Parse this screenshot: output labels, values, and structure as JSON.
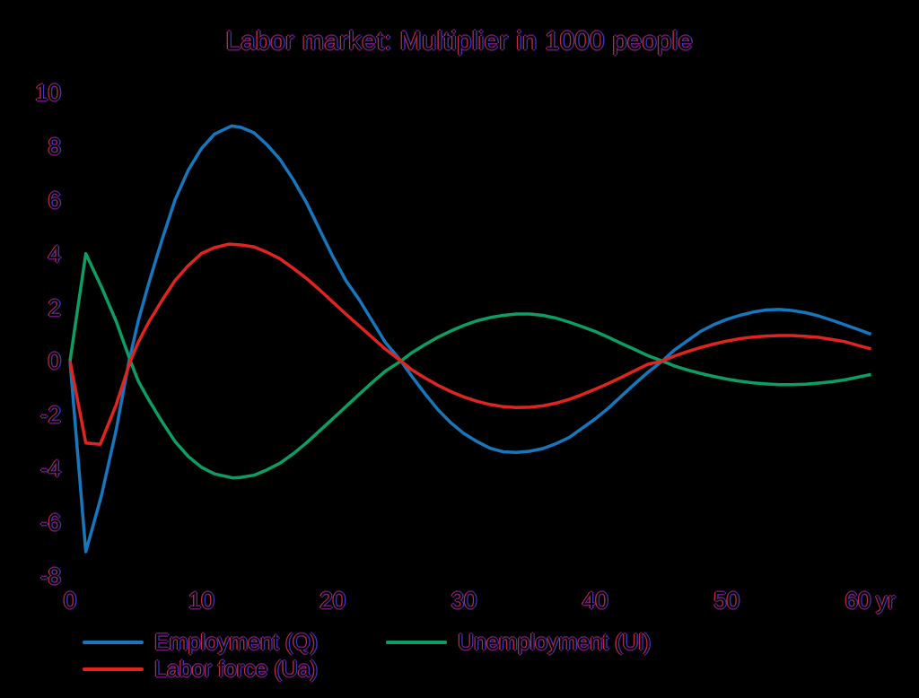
{
  "background": "#000000",
  "text_style": {
    "fill": "#000000",
    "fringe_left": "#c02848",
    "fringe_right": "#4534c0",
    "fringe_vertical": "#701478"
  },
  "chart_data": {
    "type": "line",
    "title": "Labor market: Multiplier in 1000 people",
    "xlabel": "yr",
    "ylabel": "",
    "x_ticks": [
      0,
      10,
      20,
      30,
      40,
      50,
      60
    ],
    "y_ticks": [
      10,
      8,
      6,
      4,
      2,
      0,
      -2,
      -4,
      -6,
      -8
    ],
    "xlim": [
      0,
      62
    ],
    "ylim": [
      -8,
      10
    ],
    "grid": false,
    "legend_position": "bottom",
    "series": [
      {
        "name": "Employment (Q)",
        "color": "#1777bd",
        "points": [
          [
            0,
            0
          ],
          [
            1.2,
            -7.1
          ],
          [
            2.4,
            -5.0
          ],
          [
            3.5,
            -2.6
          ],
          [
            4.5,
            0
          ],
          [
            5.2,
            1.5
          ],
          [
            6,
            2.9
          ],
          [
            7,
            4.5
          ],
          [
            8,
            6.0
          ],
          [
            9,
            7.1
          ],
          [
            10,
            7.9
          ],
          [
            11,
            8.45
          ],
          [
            12.3,
            8.75
          ],
          [
            13,
            8.7
          ],
          [
            14,
            8.5
          ],
          [
            15,
            8.05
          ],
          [
            16,
            7.5
          ],
          [
            17,
            6.75
          ],
          [
            18,
            5.9
          ],
          [
            19,
            4.9
          ],
          [
            20,
            3.9
          ],
          [
            21,
            3.0
          ],
          [
            22,
            2.3
          ],
          [
            23,
            1.5
          ],
          [
            24,
            0.7
          ],
          [
            25.2,
            0
          ],
          [
            26,
            -0.55
          ],
          [
            27,
            -1.2
          ],
          [
            28,
            -1.8
          ],
          [
            29,
            -2.3
          ],
          [
            30,
            -2.7
          ],
          [
            31,
            -3.0
          ],
          [
            32,
            -3.25
          ],
          [
            33,
            -3.38
          ],
          [
            34,
            -3.4
          ],
          [
            35,
            -3.36
          ],
          [
            36,
            -3.26
          ],
          [
            37,
            -3.08
          ],
          [
            38,
            -2.85
          ],
          [
            39,
            -2.5
          ],
          [
            40,
            -2.15
          ],
          [
            41,
            -1.75
          ],
          [
            42,
            -1.3
          ],
          [
            43,
            -0.85
          ],
          [
            44,
            -0.42
          ],
          [
            45.1,
            0
          ],
          [
            46,
            0.4
          ],
          [
            47,
            0.75
          ],
          [
            48,
            1.1
          ],
          [
            49,
            1.35
          ],
          [
            50,
            1.55
          ],
          [
            51,
            1.7
          ],
          [
            52,
            1.82
          ],
          [
            53,
            1.9
          ],
          [
            54,
            1.92
          ],
          [
            55,
            1.88
          ],
          [
            56,
            1.8
          ],
          [
            57,
            1.68
          ],
          [
            58,
            1.52
          ],
          [
            59,
            1.35
          ],
          [
            60,
            1.18
          ],
          [
            61,
            1.0
          ]
        ]
      },
      {
        "name": "Unemployment (Ul)",
        "color": "#0d9e63",
        "points": [
          [
            0,
            0
          ],
          [
            1.2,
            4.0
          ],
          [
            2.4,
            2.75
          ],
          [
            3.5,
            1.5
          ],
          [
            4.6,
            0
          ],
          [
            5.2,
            -0.75
          ],
          [
            6,
            -1.45
          ],
          [
            7,
            -2.25
          ],
          [
            8,
            -3.0
          ],
          [
            9,
            -3.55
          ],
          [
            10,
            -3.95
          ],
          [
            11,
            -4.2
          ],
          [
            12.4,
            -4.35
          ],
          [
            13,
            -4.33
          ],
          [
            14,
            -4.25
          ],
          [
            15,
            -4.05
          ],
          [
            16,
            -3.8
          ],
          [
            17,
            -3.45
          ],
          [
            18,
            -3.05
          ],
          [
            19,
            -2.6
          ],
          [
            20,
            -2.15
          ],
          [
            21,
            -1.7
          ],
          [
            22,
            -1.25
          ],
          [
            23,
            -0.8
          ],
          [
            24,
            -0.38
          ],
          [
            25.2,
            0
          ],
          [
            26,
            0.3
          ],
          [
            27,
            0.6
          ],
          [
            28,
            0.88
          ],
          [
            29,
            1.12
          ],
          [
            30,
            1.33
          ],
          [
            31,
            1.5
          ],
          [
            32,
            1.62
          ],
          [
            33,
            1.7
          ],
          [
            34,
            1.75
          ],
          [
            35,
            1.75
          ],
          [
            36,
            1.7
          ],
          [
            37,
            1.6
          ],
          [
            38,
            1.45
          ],
          [
            39,
            1.28
          ],
          [
            40,
            1.1
          ],
          [
            41,
            0.88
          ],
          [
            42,
            0.65
          ],
          [
            43,
            0.43
          ],
          [
            44,
            0.2
          ],
          [
            45.1,
            0
          ],
          [
            46,
            -0.18
          ],
          [
            47,
            -0.33
          ],
          [
            48,
            -0.46
          ],
          [
            49,
            -0.57
          ],
          [
            50,
            -0.67
          ],
          [
            51,
            -0.75
          ],
          [
            52,
            -0.81
          ],
          [
            53,
            -0.85
          ],
          [
            54,
            -0.88
          ],
          [
            55,
            -0.88
          ],
          [
            56,
            -0.86
          ],
          [
            57,
            -0.82
          ],
          [
            58,
            -0.77
          ],
          [
            59,
            -0.7
          ],
          [
            60,
            -0.6
          ],
          [
            61,
            -0.5
          ]
        ]
      },
      {
        "name": "Labor force (Ua)",
        "color": "#e02420",
        "points": [
          [
            0,
            0
          ],
          [
            1.2,
            -3.05
          ],
          [
            2.3,
            -3.1
          ],
          [
            3.5,
            -1.65
          ],
          [
            4.6,
            0
          ],
          [
            5.2,
            0.7
          ],
          [
            6,
            1.45
          ],
          [
            7,
            2.25
          ],
          [
            8,
            3.0
          ],
          [
            9,
            3.55
          ],
          [
            10,
            4.0
          ],
          [
            11,
            4.22
          ],
          [
            12.1,
            4.35
          ],
          [
            13,
            4.32
          ],
          [
            14,
            4.25
          ],
          [
            15,
            4.05
          ],
          [
            16,
            3.8
          ],
          [
            17,
            3.45
          ],
          [
            18,
            3.08
          ],
          [
            19,
            2.65
          ],
          [
            20,
            2.2
          ],
          [
            21,
            1.75
          ],
          [
            22,
            1.32
          ],
          [
            23,
            0.88
          ],
          [
            24,
            0.45
          ],
          [
            25.2,
            0
          ],
          [
            26,
            -0.32
          ],
          [
            27,
            -0.62
          ],
          [
            28,
            -0.9
          ],
          [
            29,
            -1.14
          ],
          [
            30,
            -1.34
          ],
          [
            31,
            -1.5
          ],
          [
            32,
            -1.62
          ],
          [
            33,
            -1.7
          ],
          [
            34,
            -1.73
          ],
          [
            35,
            -1.72
          ],
          [
            36,
            -1.67
          ],
          [
            37,
            -1.57
          ],
          [
            38,
            -1.43
          ],
          [
            39,
            -1.25
          ],
          [
            40,
            -1.05
          ],
          [
            41,
            -0.83
          ],
          [
            42,
            -0.6
          ],
          [
            43,
            -0.36
          ],
          [
            44,
            -0.12
          ],
          [
            45.1,
            0
          ],
          [
            46,
            0.18
          ],
          [
            47,
            0.35
          ],
          [
            48,
            0.5
          ],
          [
            49,
            0.63
          ],
          [
            50,
            0.74
          ],
          [
            51,
            0.83
          ],
          [
            52,
            0.89
          ],
          [
            53,
            0.93
          ],
          [
            54,
            0.95
          ],
          [
            55,
            0.95
          ],
          [
            56,
            0.92
          ],
          [
            57,
            0.88
          ],
          [
            58,
            0.8
          ],
          [
            59,
            0.72
          ],
          [
            60,
            0.58
          ],
          [
            61,
            0.45
          ]
        ]
      }
    ]
  }
}
